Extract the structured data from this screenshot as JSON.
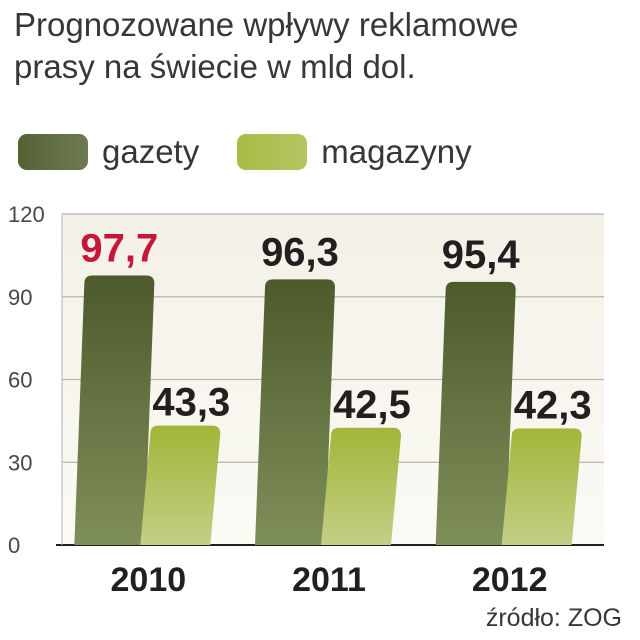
{
  "title": {
    "line1": "Prognozowane wpływy reklamowe",
    "line2": "prasy na świecie w mld dol."
  },
  "legend": [
    {
      "label": "gazety",
      "color": "#556234"
    },
    {
      "label": "magazyny",
      "color": "#a9bb45"
    }
  ],
  "source": "źródło: ZOG",
  "chart_data": {
    "type": "bar",
    "categories": [
      "2010",
      "2011",
      "2012"
    ],
    "series": [
      {
        "name": "gazety",
        "values": [
          97.7,
          96.3,
          95.4
        ],
        "labels": [
          "97,7",
          "96,3",
          "95,4"
        ],
        "color": "#556234"
      },
      {
        "name": "magazyny",
        "values": [
          43.3,
          42.5,
          42.3
        ],
        "labels": [
          "43,3",
          "42,5",
          "42,3"
        ],
        "color": "#a9bb45"
      }
    ],
    "highlight_color": "#c4173a",
    "highlight": {
      "series": 0,
      "index": 0
    },
    "ylim": [
      0,
      120
    ],
    "yticks": [
      0,
      30,
      60,
      90,
      120
    ],
    "grid": true
  }
}
